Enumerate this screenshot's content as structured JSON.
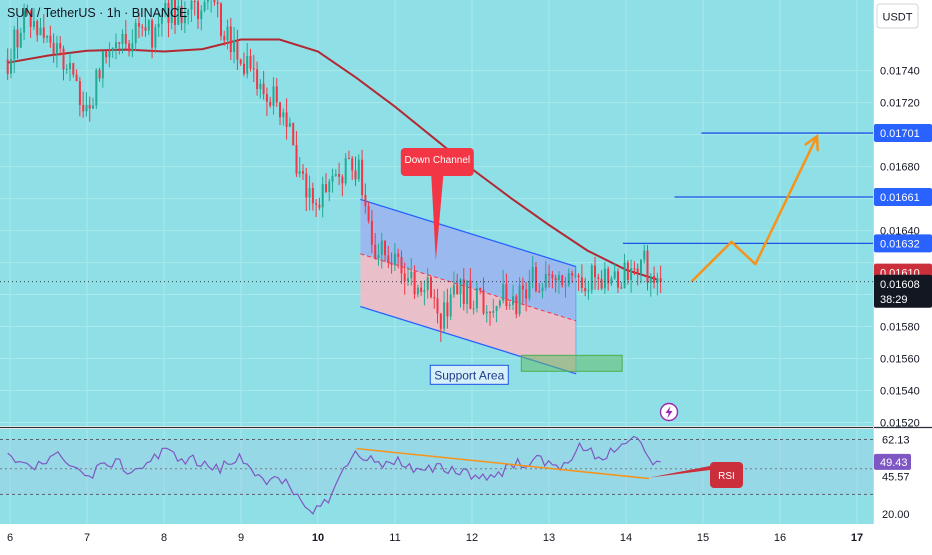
{
  "header": {
    "title": "SUN / TetherUS · 1h · BINANCE",
    "currency": "USDT"
  },
  "colors": {
    "background": "#8fe0e6",
    "grid": "#a9e8ec",
    "up_candle": "#22ab94",
    "down_candle": "#f23645",
    "ma_line": "#b22833",
    "channel_upper_fill": "#9bb6f0",
    "channel_lower_fill": "#f3bcc6",
    "channel_border": "#2962ff",
    "level_line": "#1e53e5",
    "forecast": "#f7931a",
    "rsi_line": "#7e57c2",
    "rsi_band": "#a6c9e8",
    "badge_blue": "#2962ff",
    "badge_red": "#cc2f3c",
    "badge_dark": "#131722"
  },
  "icons": {
    "lightning": "lightning-icon"
  },
  "chart_data": [
    {
      "type": "candlestick",
      "symbol": "SUN / TetherUS",
      "timeframe": "1h",
      "exchange": "BINANCE",
      "x_ticks": [
        "6",
        "7",
        "8",
        "9",
        "10",
        "11",
        "12",
        "13",
        "14",
        "15",
        "16",
        "17"
      ],
      "x_range": [
        5.97,
        17.05
      ],
      "y_ticks": [
        "0.01520",
        "0.01540",
        "0.01560",
        "0.01580",
        "0.01640",
        "0.01680",
        "0.01720",
        "0.01740"
      ],
      "ylim": [
        0.015178,
        0.017842
      ],
      "price_levels": [
        {
          "label": "0.01701",
          "value": 0.01701,
          "x_start": 14.98,
          "style": "blue"
        },
        {
          "label": "0.01661",
          "value": 0.01661,
          "x_start": 14.63,
          "style": "blue"
        },
        {
          "label": "0.01632",
          "value": 0.01632,
          "x_start": 13.96,
          "style": "blue"
        }
      ],
      "badges": [
        {
          "label": "0.01610",
          "value": 0.0161,
          "style": "red"
        },
        {
          "label": "0.01608",
          "value": 0.01608,
          "sublabel": "38:29",
          "style": "dark"
        }
      ],
      "last_price": 0.01608,
      "moving_average": [
        [
          5.97,
          0.01745
        ],
        [
          6.5,
          0.017495
        ],
        [
          7.0,
          0.017525
        ],
        [
          7.5,
          0.017532
        ],
        [
          8.0,
          0.01752
        ],
        [
          8.5,
          0.017535
        ],
        [
          9.0,
          0.017595
        ],
        [
          9.5,
          0.017595
        ],
        [
          10.0,
          0.01752
        ],
        [
          10.5,
          0.017355
        ],
        [
          11.0,
          0.017175
        ],
        [
          11.5,
          0.01698
        ],
        [
          12.0,
          0.016785
        ],
        [
          12.5,
          0.016605
        ],
        [
          13.0,
          0.016435
        ],
        [
          13.5,
          0.016275
        ],
        [
          14.0,
          0.016155
        ],
        [
          14.4,
          0.016095
        ]
      ],
      "ohlc_path": [
        [
          5.97,
          0.01747
        ],
        [
          6.2,
          0.01776
        ],
        [
          6.5,
          0.01759
        ],
        [
          6.75,
          0.01745
        ],
        [
          7.0,
          0.01711
        ],
        [
          7.2,
          0.01748
        ],
        [
          7.45,
          0.01755
        ],
        [
          7.7,
          0.0177
        ],
        [
          7.85,
          0.01761
        ],
        [
          8.0,
          0.01779
        ],
        [
          8.3,
          0.01774
        ],
        [
          8.6,
          0.01781
        ],
        [
          8.85,
          0.01762
        ],
        [
          9.05,
          0.01743
        ],
        [
          9.3,
          0.01725
        ],
        [
          9.55,
          0.01718
        ],
        [
          9.75,
          0.01672
        ],
        [
          10.0,
          0.01655
        ],
        [
          10.2,
          0.01672
        ],
        [
          10.45,
          0.01683
        ],
        [
          10.55,
          0.01675
        ],
        [
          10.7,
          0.01634
        ],
        [
          10.9,
          0.01622
        ],
        [
          11.1,
          0.01612
        ],
        [
          11.4,
          0.01606
        ],
        [
          11.6,
          0.01585
        ],
        [
          11.8,
          0.01605
        ],
        [
          12.0,
          0.01599
        ],
        [
          12.2,
          0.01592
        ],
        [
          12.35,
          0.01603
        ],
        [
          12.55,
          0.01592
        ],
        [
          12.8,
          0.0161
        ],
        [
          13.1,
          0.01605
        ],
        [
          13.4,
          0.01605
        ],
        [
          13.6,
          0.01615
        ],
        [
          13.8,
          0.01604
        ],
        [
          14.0,
          0.01613
        ],
        [
          14.2,
          0.01624
        ],
        [
          14.35,
          0.01604
        ],
        [
          14.45,
          0.01607
        ]
      ],
      "candle_count": 200,
      "down_channel": {
        "upper": [
          [
            10.55,
            0.016595
          ],
          [
            13.35,
            0.016175
          ]
        ],
        "middle": [
          [
            10.55,
            0.016255
          ],
          [
            13.35,
            0.015835
          ]
        ],
        "lower": [
          [
            10.55,
            0.015925
          ],
          [
            13.35,
            0.015505
          ]
        ],
        "label": "Down Channel",
        "label_anchor": [
          11.53,
          0.01621
        ]
      },
      "support_area": {
        "x": [
          12.64,
          13.95
        ],
        "y": [
          0.01552,
          0.01562
        ],
        "label": "Support Area"
      },
      "forecast_path": [
        [
          14.85,
          0.01608
        ],
        [
          15.37,
          0.01633
        ],
        [
          15.68,
          0.01619
        ],
        [
          16.48,
          0.01699
        ]
      ],
      "forecast_arrow_direction": "up"
    },
    {
      "type": "line",
      "indicator": "RSI",
      "y_ticks": [
        "62.13",
        "20.00"
      ],
      "ylim": [
        14.2,
        68.1
      ],
      "badges": [
        {
          "label": "49.43",
          "value": 49.43,
          "style": "purple"
        },
        {
          "label": "45.57",
          "value": 45.57,
          "style": "plain"
        }
      ],
      "band": [
        31.0,
        62.13
      ],
      "series_path": [
        [
          5.97,
          52
        ],
        [
          6.3,
          48
        ],
        [
          6.7,
          53
        ],
        [
          7.0,
          40
        ],
        [
          7.3,
          50
        ],
        [
          7.6,
          44
        ],
        [
          8.0,
          55
        ],
        [
          8.4,
          50
        ],
        [
          8.7,
          45
        ],
        [
          9.0,
          52
        ],
        [
          9.3,
          40
        ],
        [
          9.6,
          36
        ],
        [
          9.8,
          24
        ],
        [
          10.05,
          23
        ],
        [
          10.25,
          38
        ],
        [
          10.5,
          56
        ],
        [
          10.75,
          48
        ],
        [
          11.0,
          51
        ],
        [
          11.3,
          43
        ],
        [
          11.6,
          46
        ],
        [
          11.9,
          44
        ],
        [
          12.2,
          40
        ],
        [
          12.5,
          47
        ],
        [
          12.8,
          51
        ],
        [
          13.1,
          46
        ],
        [
          13.4,
          57
        ],
        [
          13.7,
          52
        ],
        [
          14.0,
          62
        ],
        [
          14.2,
          59
        ],
        [
          14.35,
          46
        ],
        [
          14.45,
          49.43
        ]
      ],
      "trendline": [
        [
          10.5,
          57
        ],
        [
          14.3,
          40
        ]
      ],
      "annotation": {
        "label": "RSI",
        "anchor": [
          14.3,
          40.5
        ]
      }
    }
  ]
}
